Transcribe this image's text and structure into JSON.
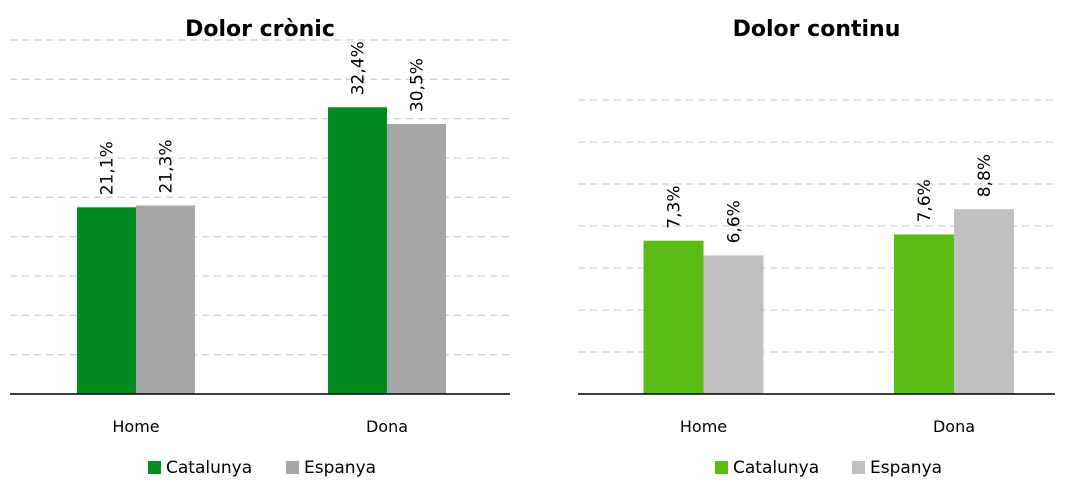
{
  "chart_data": [
    {
      "type": "bar",
      "title": "Dolor crònic",
      "categories": [
        "Home",
        "Dona"
      ],
      "series": [
        {
          "name": "Catalunya",
          "values": [
            21.1,
            32.4
          ],
          "labels": [
            "21,1%",
            "32,4%"
          ],
          "color": "#008C23"
        },
        {
          "name": "Espanya",
          "values": [
            21.3,
            30.5
          ],
          "labels": [
            "21,3%",
            "30,5%"
          ],
          "color": "#A6A6A6"
        }
      ],
      "ylim": [
        0,
        40
      ],
      "grid": true,
      "legend": "bottom"
    },
    {
      "type": "bar",
      "title": "Dolor continu",
      "categories": [
        "Home",
        "Dona"
      ],
      "series": [
        {
          "name": "Catalunya",
          "values": [
            7.3,
            7.6
          ],
          "labels": [
            "7,3%",
            "7,6%"
          ],
          "color": "#5BBD14"
        },
        {
          "name": "Espanya",
          "values": [
            6.6,
            8.8
          ],
          "labels": [
            "6,6%",
            "8,8%"
          ],
          "color": "#C0C0C0"
        }
      ],
      "ylim": [
        0,
        14
      ],
      "grid": true,
      "legend": "bottom"
    }
  ]
}
